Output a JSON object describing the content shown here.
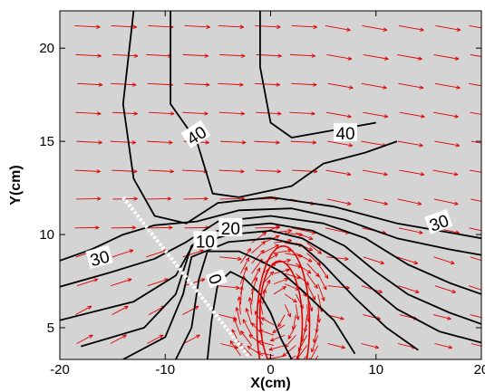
{
  "chart_data": {
    "type": "contour-vector",
    "xlabel": "X(cm)",
    "ylabel": "Y(cm)",
    "xlim": [
      -20,
      20
    ],
    "ylim": [
      3.3,
      22
    ],
    "x_ticks": [
      -20,
      -10,
      0,
      10,
      20
    ],
    "y_ticks": [
      5,
      10,
      15,
      20
    ],
    "x_tick_labels": [
      "-20",
      "-10",
      "0",
      "10",
      "20"
    ],
    "y_tick_labels": [
      "5",
      "10",
      "15",
      "20"
    ],
    "grid": false,
    "background_color": "#d4d4d4",
    "contour_color": "#000000",
    "vector_color": "#e00000",
    "contours": [
      {
        "level": "40",
        "points": [
          [
            -9.5,
            22
          ],
          [
            -9.5,
            17
          ],
          [
            -7,
            15
          ],
          [
            -5.5,
            12.2
          ],
          [
            -3,
            12
          ],
          [
            2,
            12.6
          ],
          [
            5,
            13.8
          ],
          [
            9,
            14.4
          ],
          [
            12,
            15
          ]
        ]
      },
      {
        "level": "40",
        "points": [
          [
            -1,
            22
          ],
          [
            -1,
            19
          ],
          [
            0,
            16
          ],
          [
            2,
            15.2
          ],
          [
            6,
            15.6
          ],
          [
            10,
            16
          ]
        ]
      },
      {
        "level": "40",
        "points": [
          [
            -13,
            22
          ],
          [
            -14,
            17
          ],
          [
            -13,
            13
          ],
          [
            -11,
            11
          ],
          [
            -8,
            10.6
          ],
          [
            -5,
            11.7
          ],
          [
            0,
            12
          ],
          [
            6,
            11.5
          ],
          [
            12,
            10.6
          ],
          [
            16,
            10.2
          ],
          [
            20,
            9.8
          ]
        ]
      },
      {
        "level": "30",
        "points": [
          [
            -20,
            8.6
          ],
          [
            -17,
            9.2
          ],
          [
            -14,
            10
          ],
          [
            -11,
            10.5
          ],
          [
            -7,
            10.7
          ],
          [
            -3,
            11.3
          ],
          [
            2,
            11.4
          ],
          [
            7,
            10.8
          ],
          [
            12,
            9.8
          ],
          [
            17,
            9.2
          ],
          [
            20,
            8.9
          ]
        ]
      },
      {
        "level": "",
        "points": [
          [
            -20,
            7.2
          ],
          [
            -15,
            8
          ],
          [
            -11,
            8.7
          ],
          [
            -8,
            9.6
          ],
          [
            -5,
            10.7
          ],
          [
            0,
            11
          ],
          [
            5,
            10.6
          ],
          [
            9,
            9.8
          ],
          [
            13,
            8.4
          ],
          [
            17,
            7.4
          ],
          [
            20,
            6.8
          ]
        ]
      },
      {
        "level": "20",
        "points": [
          [
            -20,
            5.4
          ],
          [
            -13,
            6.4
          ],
          [
            -9,
            7.8
          ],
          [
            -7,
            9.8
          ],
          [
            -4,
            10.4
          ],
          [
            0,
            10.6
          ],
          [
            4,
            10.2
          ],
          [
            7,
            9.4
          ],
          [
            10,
            8
          ],
          [
            13,
            6.8
          ],
          [
            17,
            5.8
          ],
          [
            20,
            5.2
          ]
        ]
      },
      {
        "level": "",
        "points": [
          [
            -18,
            4
          ],
          [
            -12,
            5
          ],
          [
            -9,
            6.8
          ],
          [
            -7.5,
            9.4
          ],
          [
            -4,
            10
          ],
          [
            0,
            10.2
          ],
          [
            3,
            9.8
          ],
          [
            6,
            8.8
          ],
          [
            9,
            7.4
          ],
          [
            12,
            6
          ],
          [
            16,
            4.8
          ],
          [
            20,
            4.2
          ]
        ]
      },
      {
        "level": "10",
        "points": [
          [
            -14,
            3.3
          ],
          [
            -10,
            4.5
          ],
          [
            -8.3,
            6.8
          ],
          [
            -7.5,
            8.8
          ],
          [
            -4,
            9.6
          ],
          [
            0,
            9.8
          ],
          [
            3,
            9.4
          ],
          [
            5,
            8.4
          ],
          [
            8,
            6.6
          ],
          [
            11,
            5
          ],
          [
            14,
            3.8
          ]
        ]
      },
      {
        "level": "",
        "points": [
          [
            -9,
            3.3
          ],
          [
            -7.5,
            5
          ],
          [
            -6.8,
            7.6
          ],
          [
            -6,
            9.1
          ],
          [
            -3,
            9.1
          ],
          [
            -1,
            8.6
          ],
          [
            1,
            8
          ],
          [
            3,
            7
          ],
          [
            6,
            5.4
          ],
          [
            8,
            3.6
          ]
        ]
      },
      {
        "level": "0",
        "points": [
          [
            -6,
            3.3
          ],
          [
            -5.6,
            5.4
          ],
          [
            -5,
            7.4
          ],
          [
            -3.8,
            8
          ],
          [
            -2.4,
            7.6
          ],
          [
            -1,
            6.8
          ],
          [
            0,
            5.8
          ],
          [
            1,
            4.4
          ],
          [
            2,
            3.3
          ]
        ]
      }
    ],
    "vortex_ellipses": [
      {
        "cx": 1.2,
        "cy": 5.2,
        "rx": 2.5,
        "ry": 1.9,
        "angle_deg": -60
      },
      {
        "cx": 1.0,
        "cy": 5.5,
        "rx": 2.0,
        "ry": 1.4,
        "angle_deg": -62
      }
    ],
    "free_surface_line": {
      "points": [
        [
          -14,
          12
        ],
        [
          -2,
          3.4
        ]
      ],
      "color": "#ffffff"
    },
    "contour_labels": [
      {
        "text": "40",
        "x": -7.0,
        "y": 15.3,
        "rotation": -33
      },
      {
        "text": "40",
        "x": 7.1,
        "y": 15.4,
        "rotation": 0
      },
      {
        "text": "30",
        "x": 16.0,
        "y": 10.6,
        "rotation": -20
      },
      {
        "text": "30",
        "x": -16.2,
        "y": 8.7,
        "rotation": -15
      },
      {
        "text": "20",
        "x": -3.8,
        "y": 10.3,
        "rotation": 0
      },
      {
        "text": "10",
        "x": -6.2,
        "y": 9.6,
        "rotation": 0
      },
      {
        "text": "0",
        "x": -5.3,
        "y": 7.6,
        "rotation": 70
      }
    ]
  }
}
